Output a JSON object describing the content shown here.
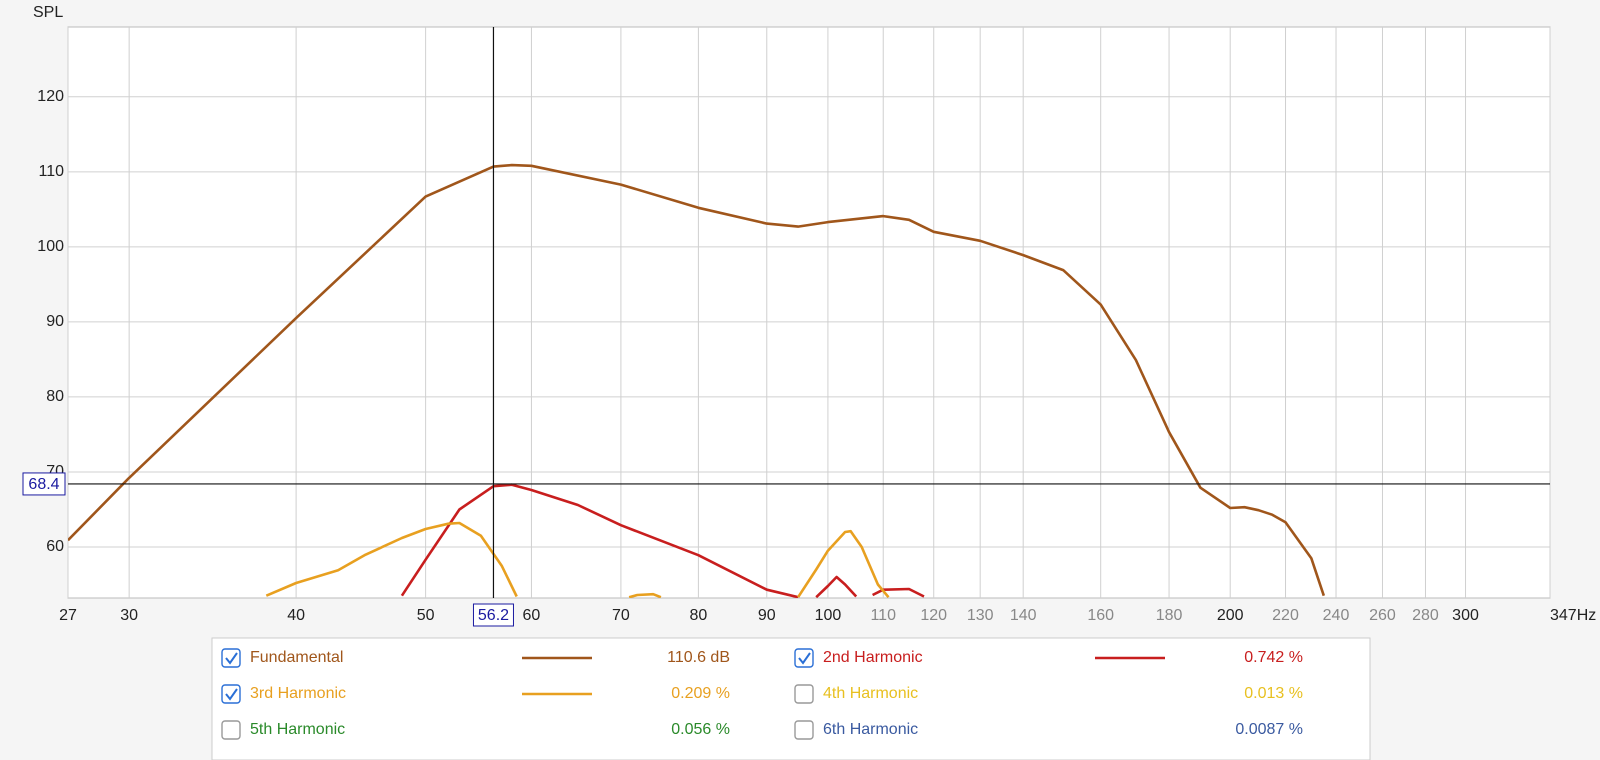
{
  "chart_data": {
    "type": "line",
    "y_label": "SPL",
    "xscale": "log",
    "xlim": [
      27,
      347
    ],
    "ylim": [
      53.2,
      129.3
    ],
    "xticks": [
      27,
      30,
      40,
      50,
      60,
      70,
      80,
      90,
      100,
      110,
      120,
      130,
      140,
      160,
      180,
      200,
      220,
      240,
      260,
      280,
      300,
      {
        "value": 347,
        "label": "347Hz"
      }
    ],
    "yticks": [
      60,
      70,
      80,
      90,
      100,
      110,
      120
    ],
    "grid": true,
    "cursor": {
      "x": 56.2,
      "y": 68.4
    },
    "series": [
      {
        "name": "Fundamental",
        "color": "#a0561b",
        "readout": "110.6 dB",
        "checked": true,
        "x": [
          27,
          30,
          40,
          50,
          56.2,
          58,
          60,
          70,
          80,
          90,
          95,
          100,
          110,
          115,
          120,
          130,
          140,
          150,
          160,
          170,
          180,
          190,
          200,
          205,
          210,
          215,
          220,
          230,
          235
        ],
        "values": [
          60.9,
          69.2,
          90.5,
          106.7,
          110.7,
          110.9,
          110.8,
          108.3,
          105.2,
          103.1,
          102.7,
          103.3,
          104.1,
          103.6,
          102,
          100.8,
          98.9,
          96.9,
          92.3,
          84.9,
          75.3,
          67.9,
          65.2,
          65.3,
          64.9,
          64.3,
          63.3,
          58.5,
          53.5
        ]
      },
      {
        "name": "2nd Harmonic",
        "color": "#c81e1e",
        "readout": "0.742 %",
        "checked": true,
        "x": [
          48,
          50,
          53,
          56.2,
          58,
          60,
          65,
          70,
          80,
          90,
          95,
          null,
          98,
          100,
          101.5,
          103,
          105,
          null,
          108,
          110,
          115,
          118
        ],
        "values": [
          53.5,
          58.3,
          65,
          68.1,
          68.3,
          67.6,
          65.6,
          62.9,
          58.9,
          54.3,
          53.3,
          null,
          53.3,
          54.8,
          56,
          55,
          53.4,
          null,
          53.6,
          54.3,
          54.4,
          53.4
        ]
      },
      {
        "name": "3rd Harmonic",
        "color": "#e8a020",
        "readout": "0.209 %",
        "checked": true,
        "x": [
          38,
          40,
          43,
          45,
          48,
          50,
          52,
          53,
          55,
          57,
          58.5,
          null,
          71,
          72,
          74,
          75,
          null,
          95,
          98,
          100,
          103,
          104,
          106,
          109,
          111
        ],
        "values": [
          53.5,
          55.2,
          56.9,
          58.9,
          61.2,
          62.4,
          63.1,
          63.2,
          61.5,
          57.5,
          53.4,
          null,
          53.3,
          53.6,
          53.7,
          53.3,
          null,
          53.3,
          57,
          59.5,
          62,
          62.1,
          60,
          55,
          53.3
        ]
      }
    ],
    "hidden_series": [
      {
        "name": "4th Harmonic",
        "color": "#e8c020",
        "readout": "0.013 %",
        "checked": false
      },
      {
        "name": "5th Harmonic",
        "color": "#2a8a2a",
        "readout": "0.056 %",
        "checked": false
      },
      {
        "name": "6th Harmonic",
        "color": "#3a5aa0",
        "readout": "0.0087 %",
        "checked": false
      }
    ]
  }
}
